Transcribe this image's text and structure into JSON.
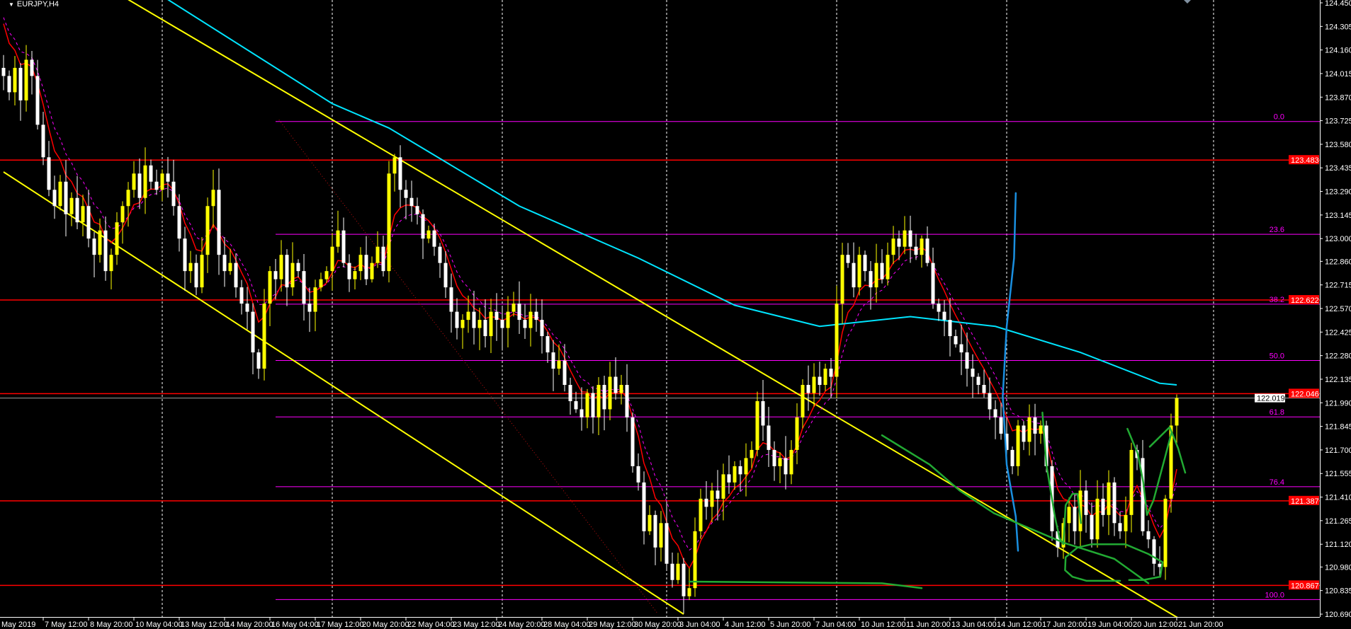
{
  "window": {
    "title": "EURJPY,H4",
    "menu_icon": "triangle-down-icon"
  },
  "chart_data": {
    "type": "candlestick",
    "symbol": "EURJPY",
    "timeframe": "H4",
    "colors": {
      "background": "#000000",
      "bull": "#ffff00",
      "bear": "#ffffff",
      "grid": "#ffffff",
      "ma_fast": "#ff0000",
      "ma_signal": "#ff00ff",
      "ma_slow": "#00e5ff",
      "levels": "#ff0000",
      "fib": "#ff00ff",
      "trendlines": "#ffff00",
      "drawing_green": "#22aa33",
      "drawing_blue": "#1a8fe0",
      "bid_line": "#a0a0a0"
    },
    "ylim": [
      120.69,
      124.45
    ],
    "y_ticks": [
      "124.450",
      "124.305",
      "124.160",
      "124.015",
      "123.870",
      "123.725",
      "123.580",
      "123.435",
      "123.290",
      "123.145",
      "123.000",
      "122.860",
      "122.715",
      "122.570",
      "122.425",
      "122.280",
      "122.135",
      "121.990",
      "121.845",
      "121.700",
      "121.555",
      "121.410",
      "121.265",
      "121.120",
      "120.980",
      "120.835",
      "120.690"
    ],
    "x_ticks": [
      "May 2019",
      "7 May 12:00",
      "8 May 20:00",
      "10 May 04:00",
      "13 May 12:00",
      "14 May 20:00",
      "16 May 04:00",
      "17 May 12:00",
      "20 May 20:00",
      "22 May 04:00",
      "23 May 12:00",
      "24 May 20:00",
      "28 May 04:00",
      "29 May 12:00",
      "30 May 20:00",
      "3 Jun 04:00",
      "4 Jun 12:00",
      "5 Jun 20:00",
      "7 Jun 04:00",
      "10 Jun 12:00",
      "11 Jun 20:00",
      "13 Jun 04:00",
      "14 Jun 12:00",
      "17 Jun 20:00",
      "19 Jun 04:00",
      "20 Jun 12:00",
      "21 Jun 20:00"
    ],
    "period_separators": true,
    "close": [
      124.0,
      123.9,
      124.05,
      123.85,
      124.1,
      124.0,
      123.7,
      123.5,
      123.3,
      123.2,
      123.35,
      123.15,
      123.25,
      123.1,
      123.2,
      123.0,
      122.9,
      123.05,
      122.8,
      122.9,
      123.1,
      123.2,
      123.3,
      123.4,
      123.25,
      123.45,
      123.35,
      123.3,
      123.4,
      123.35,
      123.2,
      123.0,
      122.8,
      122.85,
      122.7,
      122.9,
      123.2,
      123.3,
      122.9,
      122.8,
      122.85,
      122.7,
      122.6,
      122.55,
      122.3,
      122.2,
      122.6,
      122.8,
      122.75,
      122.9,
      122.7,
      122.85,
      122.8,
      122.6,
      122.55,
      122.7,
      122.75,
      122.8,
      122.95,
      123.05,
      122.85,
      122.75,
      122.8,
      122.9,
      122.75,
      122.85,
      122.95,
      122.8,
      123.4,
      123.5,
      123.3,
      123.25,
      123.2,
      123.15,
      123.0,
      123.05,
      122.95,
      122.85,
      122.7,
      122.55,
      122.45,
      122.5,
      122.55,
      122.45,
      122.5,
      122.4,
      122.55,
      122.5,
      122.45,
      122.55,
      122.6,
      122.5,
      122.45,
      122.55,
      122.5,
      122.4,
      122.3,
      122.2,
      122.25,
      122.1,
      122.0,
      121.95,
      121.9,
      122.05,
      121.9,
      122.1,
      121.95,
      122.15,
      122.05,
      122.1,
      121.9,
      121.6,
      121.5,
      121.2,
      121.3,
      121.1,
      121.25,
      121.0,
      120.9,
      121.0,
      120.8,
      120.85,
      121.2,
      121.4,
      121.35,
      121.45,
      121.4,
      121.55,
      121.5,
      121.6,
      121.55,
      121.65,
      121.7,
      122.0,
      121.85,
      121.7,
      121.6,
      121.65,
      121.55,
      121.7,
      121.9,
      122.1,
      122.05,
      122.15,
      122.1,
      122.2,
      122.15,
      122.6,
      122.9,
      122.85,
      122.7,
      122.9,
      122.8,
      122.7,
      122.85,
      122.75,
      122.9,
      123.0,
      122.95,
      123.05,
      122.95,
      122.9,
      123.0,
      122.85,
      122.6,
      122.55,
      122.5,
      122.4,
      122.35,
      122.3,
      122.2,
      122.15,
      122.1,
      122.05,
      121.95,
      121.9,
      121.8,
      121.7,
      121.6,
      121.85,
      121.75,
      121.9,
      121.8,
      121.85,
      121.6,
      121.2,
      121.1,
      121.25,
      121.35,
      121.2,
      121.45,
      121.3,
      121.15,
      121.4,
      121.3,
      121.5,
      121.25,
      121.2,
      121.3,
      121.7,
      121.65,
      121.2,
      121.15,
      121.0,
      120.98,
      121.4,
      121.85,
      122.019
    ],
    "ma_slow": [
      [
        29,
        124.47
      ],
      [
        58,
        123.83
      ],
      [
        68,
        123.68
      ],
      [
        91,
        123.2
      ],
      [
        112,
        122.88
      ],
      [
        129,
        122.59
      ],
      [
        144,
        122.46
      ],
      [
        160,
        122.52
      ],
      [
        175,
        122.46
      ],
      [
        190,
        122.3
      ],
      [
        204,
        122.11
      ],
      [
        207,
        122.1
      ]
    ],
    "horizontal_levels": [
      {
        "price": 123.483,
        "label": "123.483"
      },
      {
        "price": 122.622,
        "label": "122.622"
      },
      {
        "price": 122.046,
        "label": "122.046"
      },
      {
        "price": 121.387,
        "label": "121.387"
      },
      {
        "price": 120.867,
        "label": "120.867"
      }
    ],
    "bid": {
      "price": 122.019,
      "label": "122.019"
    },
    "fibonacci": {
      "start_bar": 48,
      "high": 123.72,
      "low": 120.78,
      "levels": [
        {
          "ratio": 0.0,
          "label": "0.0"
        },
        {
          "ratio": 23.6,
          "label": "23.6"
        },
        {
          "ratio": 38.2,
          "label": "38.2"
        },
        {
          "ratio": 50.0,
          "label": "50.0"
        },
        {
          "ratio": 61.8,
          "label": "61.8"
        },
        {
          "ratio": 76.4,
          "label": "76.4"
        },
        {
          "ratio": 100.0,
          "label": "100.0"
        }
      ]
    },
    "trendlines": [
      {
        "color": "yellow",
        "points": [
          [
            22,
            124.47
          ],
          [
            210,
            120.61
          ]
        ]
      },
      {
        "color": "yellow",
        "points": [
          [
            0,
            123.41
          ],
          [
            120,
            120.69
          ]
        ]
      },
      {
        "color": "red-dotted",
        "points": [
          [
            48.6,
            123.73
          ],
          [
            115.5,
            120.69
          ]
        ]
      }
    ],
    "drawings": [
      {
        "color": "blue",
        "points": [
          [
            178.6,
            123.28
          ],
          [
            178.3,
            122.88
          ],
          [
            177,
            122.46
          ],
          [
            176.3,
            122.03
          ],
          [
            177,
            121.61
          ],
          [
            178.6,
            121.29
          ],
          [
            179,
            121.08
          ]
        ]
      },
      {
        "color": "green",
        "points": [
          [
            121,
            120.89
          ],
          [
            155,
            120.88
          ],
          [
            162,
            120.85
          ]
        ]
      },
      {
        "color": "green",
        "points": [
          [
            155,
            121.79
          ],
          [
            163.4,
            121.61
          ],
          [
            168.7,
            121.45
          ],
          [
            174.8,
            121.31
          ],
          [
            187,
            121.13
          ],
          [
            196,
            121.03
          ],
          [
            202,
            120.88
          ]
        ]
      },
      {
        "color": "green",
        "points": [
          [
            183.3,
            121.93
          ],
          [
            184,
            121.61
          ],
          [
            185.5,
            121.29
          ],
          [
            186.3,
            121.16
          ],
          [
            187,
            121.12
          ],
          [
            187.4,
            121.36
          ],
          [
            188.6,
            121.43
          ],
          [
            189.5,
            121.43
          ],
          [
            190.1,
            121.25
          ]
        ]
      },
      {
        "color": "green",
        "points": [
          [
            197,
            120.895
          ],
          [
            191.1,
            120.895
          ],
          [
            188.6,
            120.92
          ],
          [
            187.3,
            120.96
          ],
          [
            187.4,
            121.04
          ],
          [
            189.5,
            121.1
          ],
          [
            192,
            121.12
          ],
          [
            197.9,
            121.12
          ],
          [
            202,
            121.06
          ],
          [
            204.5,
            121.01
          ],
          [
            204.1,
            120.92
          ],
          [
            201.1,
            120.9
          ],
          [
            198.6,
            120.9
          ]
        ]
      },
      {
        "color": "green",
        "points": [
          [
            198.3,
            121.83
          ],
          [
            200.1,
            121.68
          ],
          [
            201.1,
            121.5
          ],
          [
            201.75,
            121.3
          ],
          [
            202.9,
            121.39
          ],
          [
            204.9,
            121.65
          ],
          [
            206.1,
            121.81
          ]
        ]
      },
      {
        "color": "green",
        "points": [
          [
            202.25,
            121.72
          ],
          [
            205.75,
            121.84
          ],
          [
            207.25,
            121.71
          ],
          [
            208.5,
            121.56
          ]
        ]
      }
    ]
  }
}
